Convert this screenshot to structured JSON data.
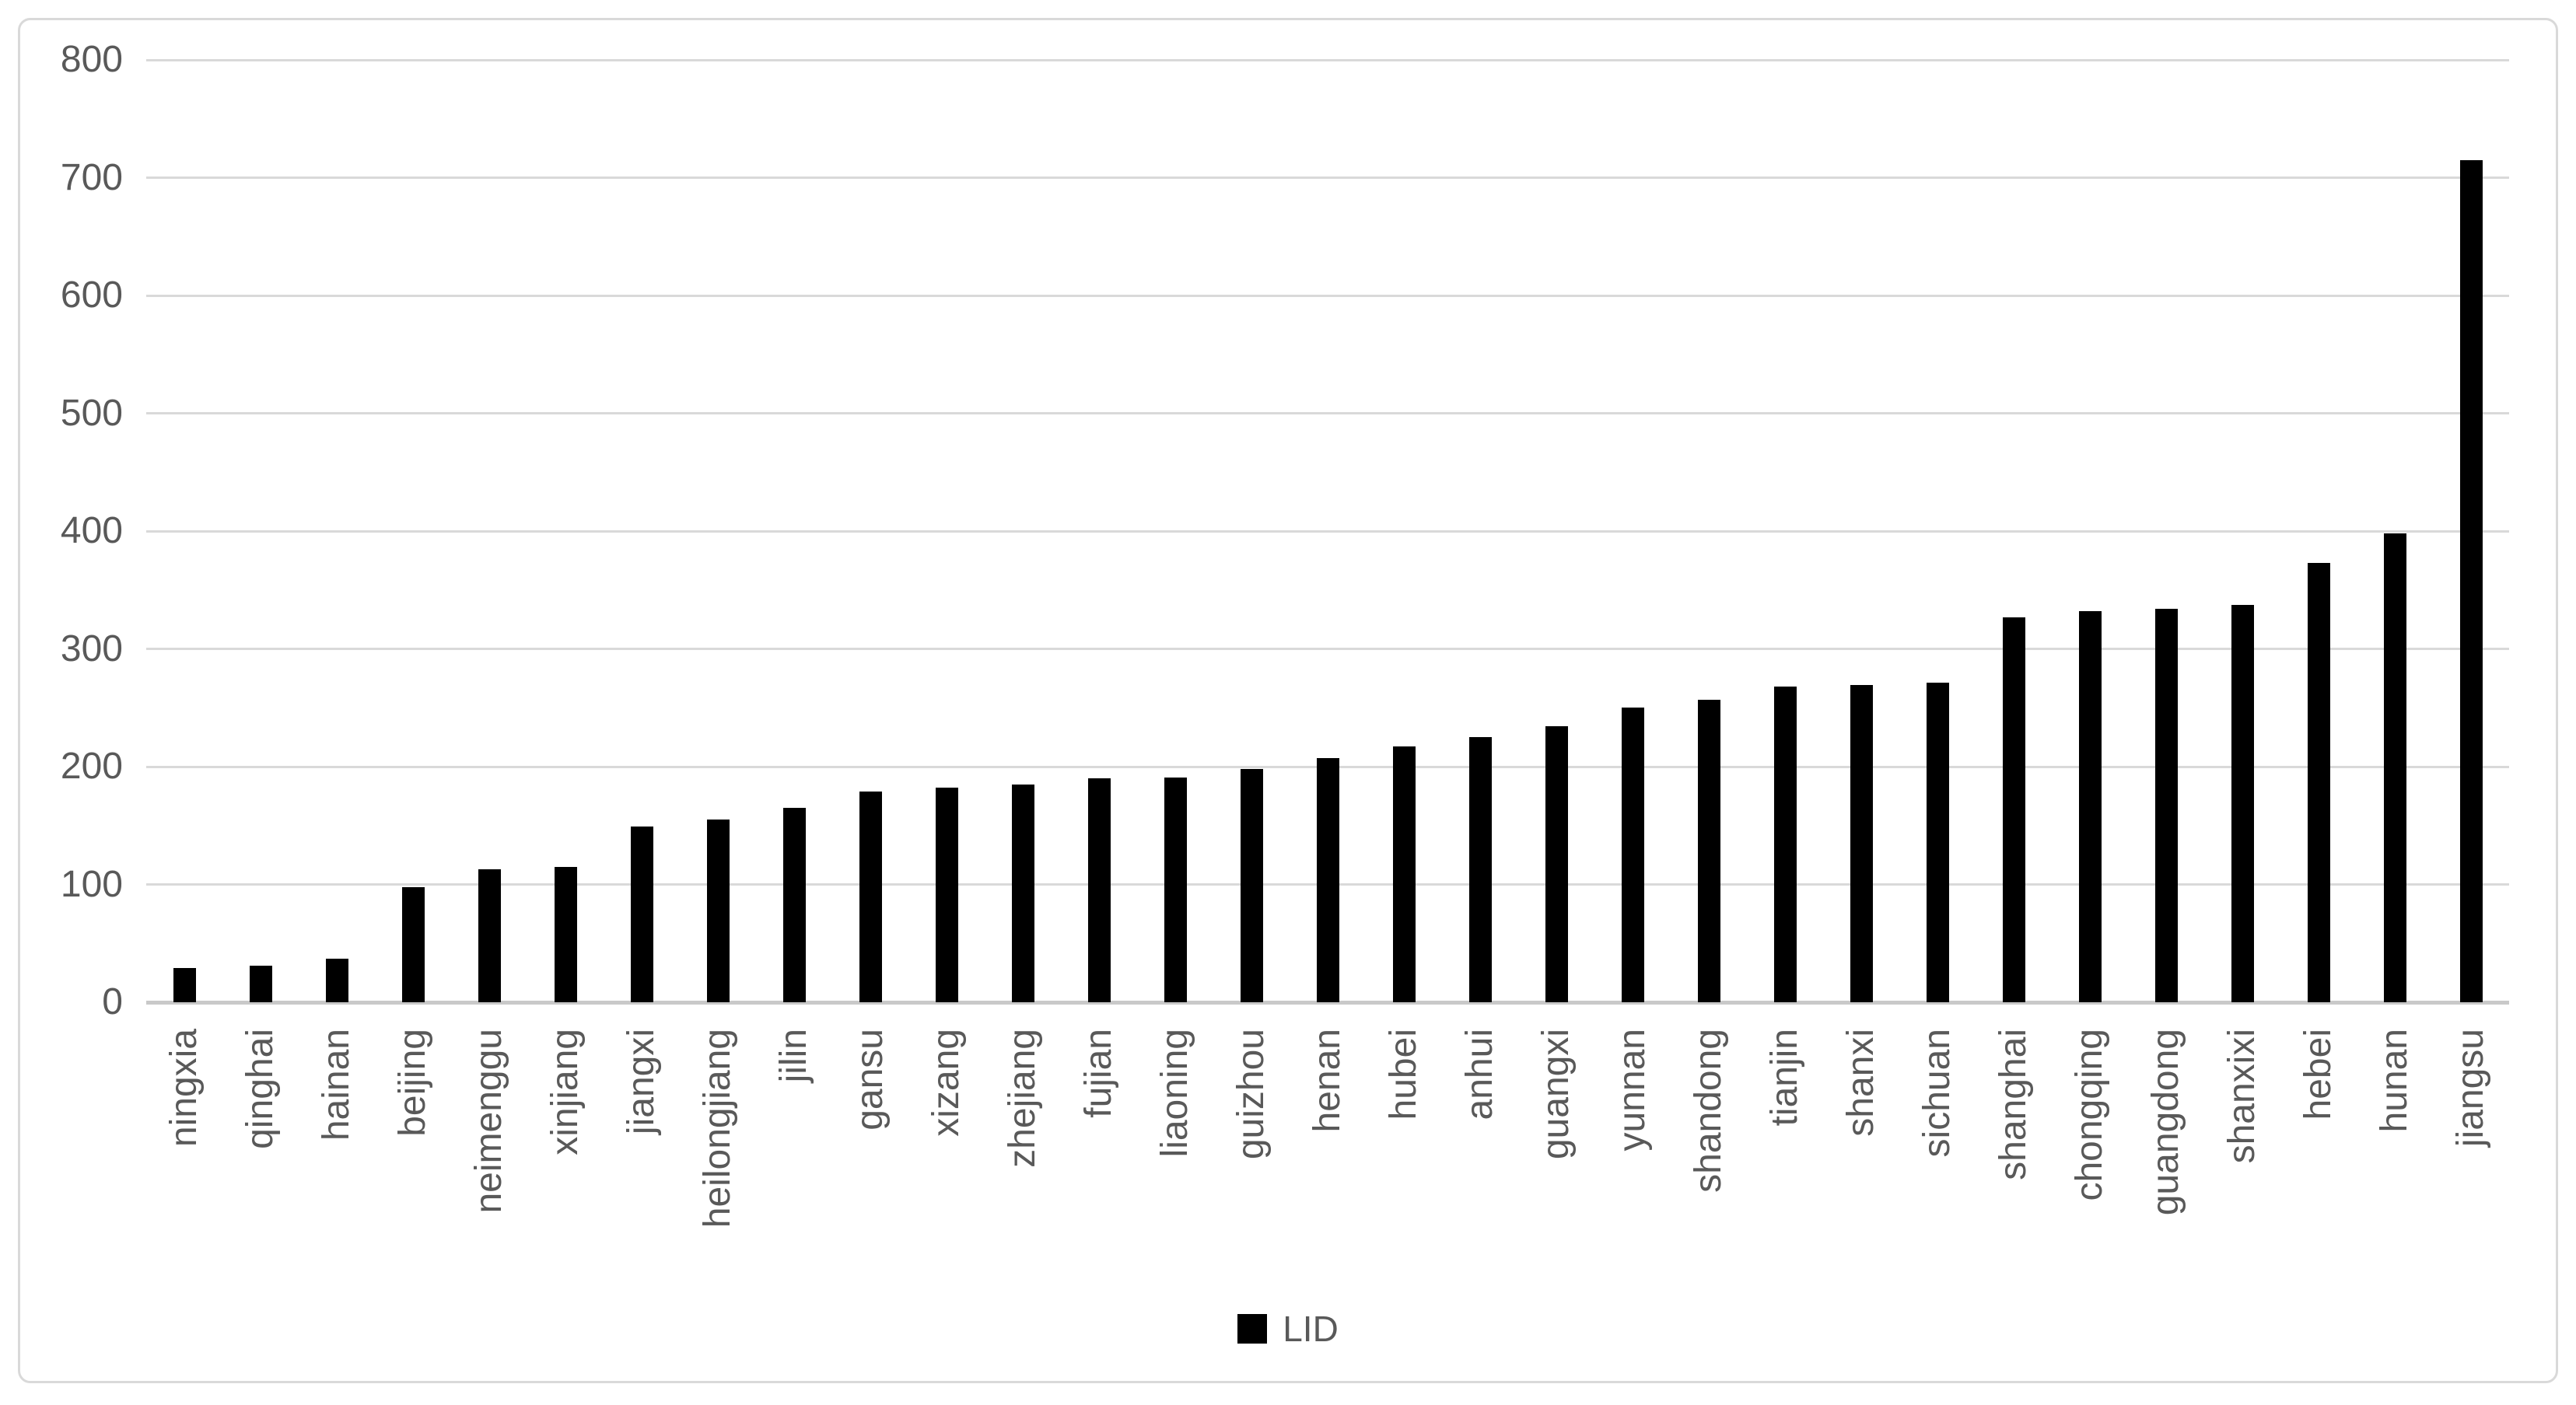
{
  "chart_data": {
    "type": "bar",
    "categories": [
      "ningxia",
      "qinghai",
      "hainan",
      "beijing",
      "neimenggu",
      "xinjiang",
      "jiangxi",
      "heilongjiang",
      "jilin",
      "gansu",
      "xizang",
      "zhejiang",
      "fujian",
      "liaoning",
      "guizhou",
      "henan",
      "hubei",
      "anhui",
      "guangxi",
      "yunnan",
      "shandong",
      "tianjin",
      "shanxi",
      "sichuan",
      "shanghai",
      "chongqing",
      "guangdong",
      "shanxixi",
      "hebei",
      "hunan",
      "jiangsu"
    ],
    "series": [
      {
        "name": "LID",
        "values": [
          29,
          31,
          37,
          98,
          113,
          115,
          149,
          155,
          165,
          179,
          182,
          185,
          190,
          191,
          198,
          207,
          217,
          225,
          234,
          250,
          257,
          268,
          269,
          271,
          327,
          332,
          334,
          337,
          373,
          398,
          715
        ]
      }
    ],
    "ylim": [
      0,
      800
    ],
    "ytick_step": 100,
    "ytick_labels": [
      "0",
      "100",
      "200",
      "300",
      "400",
      "500",
      "600",
      "700",
      "800"
    ],
    "grid": "horizontal",
    "legend": {
      "label": "LID",
      "position": "bottom"
    },
    "colors": {
      "bar": "#000000",
      "gridline": "#d9d9d9",
      "axis_line": "#c9c9c9",
      "tick_label": "#595959",
      "frame_border": "#d9d9d9"
    }
  }
}
